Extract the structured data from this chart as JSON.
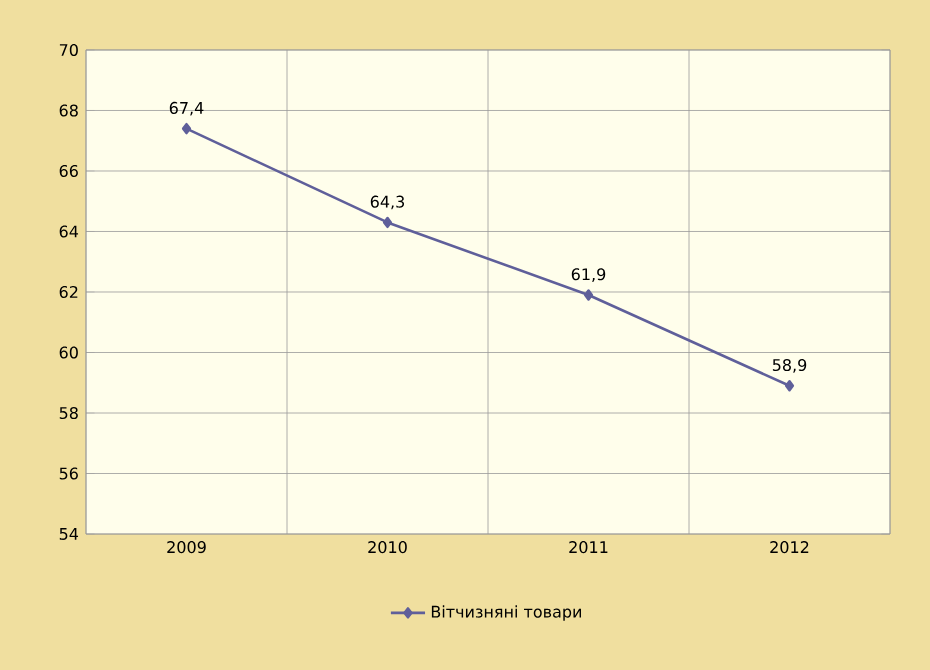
{
  "chart_data": {
    "type": "line",
    "categories": [
      "2009",
      "2010",
      "2011",
      "2012"
    ],
    "series": [
      {
        "name": "Вітчизняні товари",
        "color": "#5f5f9a",
        "values": [
          67.4,
          64.3,
          61.9,
          58.9
        ],
        "value_labels": [
          "67,4",
          "64,3",
          "61,9",
          "58,9"
        ]
      }
    ],
    "ylim": [
      54,
      70
    ],
    "yticks": [
      54,
      56,
      58,
      60,
      62,
      64,
      66,
      68,
      70
    ],
    "grid": true,
    "legend": "bottom",
    "marker": "diamond"
  }
}
